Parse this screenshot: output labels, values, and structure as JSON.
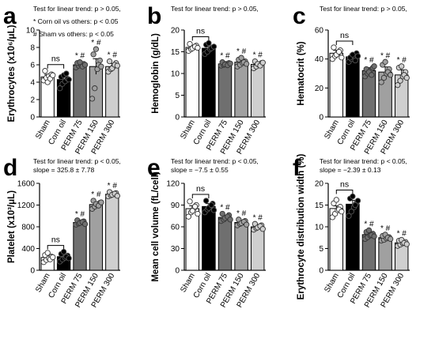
{
  "notes": {
    "trend_not_sig": "Test for linear trend: p > 0.05,",
    "trend_sig": "Test for linear trend: p < 0.05,",
    "corn_oil_vs_others": "* Corn oil vs others: p < 0.05",
    "sham_vs_others": "# Sham vs others: p < 0.05",
    "slope_d": "slope = 325.8 ± 7.78",
    "slope_e": "slope = −7.5 ± 0.55",
    "slope_f": "slope = −2.39 ± 0.13"
  },
  "significance": {
    "ns": "ns",
    "mark": "* #"
  },
  "colors": {
    "sham": "#ffffff",
    "corn_oil": "#000000",
    "perm75": "#6f6f6f",
    "perm150": "#a0a0a0",
    "perm300": "#cfcfcf"
  },
  "chart_data": [
    {
      "panel": "a",
      "type": "bar",
      "ylabel": "Erythrocytes (x10⁶/μL)",
      "categories": [
        "Sham",
        "Corn oil",
        "PERM 75",
        "PERM 150",
        "PERM 300"
      ],
      "ylim": [
        0,
        10
      ],
      "yticks": [
        0,
        2,
        4,
        6,
        8,
        10
      ],
      "values": [
        4.6,
        4.3,
        6.0,
        5.8,
        5.8
      ],
      "errors": [
        0.3,
        0.5,
        0.25,
        0.9,
        0.35
      ],
      "points": [
        [
          4.2,
          4.5,
          4.7,
          4.9,
          5.3,
          4.0,
          4.4,
          4.8
        ],
        [
          3.3,
          3.8,
          4.1,
          4.4,
          4.6,
          4.8,
          5.0,
          4.3
        ],
        [
          5.7,
          5.9,
          6.0,
          6.1,
          6.2,
          6.3,
          5.8,
          6.0
        ],
        [
          2.1,
          3.3,
          5.5,
          6.5,
          7.2,
          7.8,
          6.0,
          5.8
        ],
        [
          5.2,
          5.5,
          5.8,
          6.2,
          6.4,
          5.6,
          6.0,
          5.9
        ]
      ],
      "significance": [
        "",
        "",
        "* #",
        "* #",
        "* #"
      ],
      "ns_bracket": true
    },
    {
      "panel": "b",
      "type": "bar",
      "ylabel": "Hemoglobin (g/dL)",
      "categories": [
        "Sham",
        "Corn oil",
        "PERM 75",
        "PERM 150",
        "PERM 300"
      ],
      "ylim": [
        0,
        20
      ],
      "yticks": [
        0,
        5,
        10,
        15,
        20
      ],
      "values": [
        16.0,
        15.8,
        12.2,
        12.6,
        12.1
      ],
      "errors": [
        0.5,
        0.7,
        0.3,
        0.5,
        0.5
      ],
      "points": [
        [
          15.2,
          15.6,
          16.0,
          16.4,
          16.8,
          15.8,
          16.2,
          15.9
        ],
        [
          14.5,
          15.0,
          15.6,
          16.0,
          16.6,
          17.0,
          15.8,
          16.2
        ],
        [
          11.8,
          12.0,
          12.2,
          12.4,
          12.6,
          12.1,
          11.9,
          12.3
        ],
        [
          11.6,
          12.0,
          12.4,
          12.8,
          13.2,
          13.6,
          12.6,
          12.2
        ],
        [
          11.2,
          11.6,
          12.0,
          12.4,
          12.8,
          12.2,
          11.8,
          12.5
        ]
      ],
      "significance": [
        "",
        "",
        "* #",
        "* #",
        "* #"
      ],
      "ns_bracket": true
    },
    {
      "panel": "c",
      "type": "bar",
      "ylabel": "Hematocrit (%)",
      "categories": [
        "Sham",
        "Corn oil",
        "PERM 75",
        "PERM 150",
        "PERM 300"
      ],
      "ylim": [
        0,
        60
      ],
      "yticks": [
        0,
        20,
        40,
        60
      ],
      "values": [
        44,
        41.5,
        32,
        31,
        29
      ],
      "errors": [
        2,
        2,
        2,
        3.5,
        3.5
      ],
      "points": [
        [
          40,
          42,
          44,
          46,
          48,
          43,
          45,
          41
        ],
        [
          38,
          40,
          42,
          44,
          41,
          43,
          39,
          42
        ],
        [
          28,
          30,
          32,
          34,
          33,
          31,
          29,
          35
        ],
        [
          24,
          27,
          30,
          33,
          36,
          38,
          31,
          29
        ],
        [
          22,
          25,
          28,
          31,
          34,
          35,
          29,
          27
        ]
      ],
      "significance": [
        "",
        "",
        "* #",
        "* #",
        "* #"
      ],
      "ns_bracket": true
    },
    {
      "panel": "d",
      "type": "bar",
      "ylabel": "Platelet (x10³/μL)",
      "categories": [
        "Sham",
        "Corn oil",
        "PERM 75",
        "PERM 150",
        "PERM 300"
      ],
      "ylim": [
        0,
        1600
      ],
      "yticks": [
        0,
        400,
        800,
        1200,
        1600
      ],
      "values": [
        235,
        250,
        880,
        1210,
        1400
      ],
      "errors": [
        40,
        40,
        20,
        40,
        20
      ],
      "points": [
        [
          150,
          190,
          220,
          250,
          280,
          320,
          200,
          240
        ],
        [
          160,
          200,
          230,
          270,
          300,
          340,
          250,
          220
        ],
        [
          840,
          860,
          880,
          900,
          920,
          870,
          890,
          850
        ],
        [
          1130,
          1170,
          1200,
          1240,
          1280,
          1220,
          1190,
          1250
        ],
        [
          1360,
          1380,
          1400,
          1420,
          1440,
          1390,
          1410,
          1370
        ]
      ],
      "significance": [
        "",
        "",
        "* #",
        "* #",
        "* #"
      ],
      "ns_bracket": true
    },
    {
      "panel": "e",
      "type": "bar",
      "ylabel": "Mean cell volume (fL/cell)",
      "categories": [
        "Sham",
        "Corn oil",
        "PERM 75",
        "PERM 150",
        "PERM 300"
      ],
      "ylim": [
        0,
        120
      ],
      "yticks": [
        0,
        30,
        60,
        90,
        120
      ],
      "values": [
        85,
        88,
        73,
        66,
        60
      ],
      "errors": [
        4,
        4,
        2,
        2,
        2
      ],
      "points": [
        [
          74,
          80,
          85,
          90,
          95,
          82,
          88,
          78
        ],
        [
          80,
          84,
          88,
          92,
          96,
          86,
          90,
          83
        ],
        [
          68,
          70,
          73,
          76,
          78,
          72,
          74,
          70
        ],
        [
          62,
          64,
          66,
          68,
          70,
          65,
          67,
          63
        ],
        [
          56,
          58,
          60,
          62,
          64,
          59,
          61,
          57
        ]
      ],
      "significance": [
        "",
        "",
        "* #",
        "* #",
        "* #"
      ],
      "ns_bracket": true
    },
    {
      "panel": "f",
      "type": "bar",
      "ylabel": "Erythrocyte distribution width (%)",
      "categories": [
        "Sham",
        "Corn oil",
        "PERM 75",
        "PERM 150",
        "PERM 300"
      ],
      "ylim": [
        0,
        20
      ],
      "yticks": [
        0,
        5,
        10,
        15,
        20
      ],
      "values": [
        14.2,
        15.2,
        8.2,
        7.5,
        6.3
      ],
      "errors": [
        0.6,
        0.9,
        0.4,
        0.3,
        0.3
      ],
      "points": [
        [
          12.2,
          13.0,
          13.8,
          14.6,
          15.4,
          16.2,
          14.0,
          13.5
        ],
        [
          12.5,
          13.5,
          14.5,
          15.5,
          16.5,
          17.0,
          15.0,
          16.0
        ],
        [
          7.2,
          7.6,
          8.0,
          8.4,
          8.8,
          9.2,
          8.1,
          7.8
        ],
        [
          6.8,
          7.0,
          7.3,
          7.6,
          7.9,
          8.2,
          7.5,
          7.2
        ],
        [
          5.6,
          5.9,
          6.2,
          6.5,
          6.8,
          7.0,
          6.3,
          6.0
        ]
      ],
      "significance": [
        "",
        "",
        "* #",
        "* #",
        "* #"
      ],
      "ns_bracket": true
    }
  ]
}
